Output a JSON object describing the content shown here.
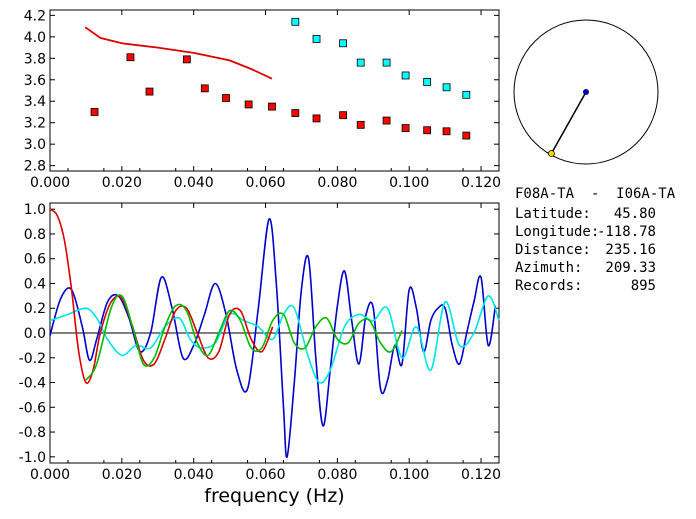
{
  "info": {
    "title": "F08A-TA  -  I06A-TA",
    "rows": [
      {
        "label": "Latitude:",
        "value": "45.80"
      },
      {
        "label": "Longitude:",
        "value": "-118.78"
      },
      {
        "label": "Distance:",
        "value": "235.16"
      },
      {
        "label": "Azimuth:",
        "value": "209.33"
      },
      {
        "label": "Records:",
        "value": "895"
      }
    ]
  },
  "chart_data": [
    {
      "type": "scatter",
      "xlabel": "",
      "ylabel": "",
      "xlim": [
        0.0,
        0.125
      ],
      "ylim": [
        2.75,
        4.25
      ],
      "x_ticks": [
        "0.000",
        "0.020",
        "0.040",
        "0.060",
        "0.080",
        "0.100",
        "0.120"
      ],
      "y_ticks": [
        "2.8",
        "3.0",
        "3.2",
        "3.4",
        "3.6",
        "3.8",
        "4.0",
        "4.2"
      ],
      "series": [
        {
          "color": "#ff0000",
          "marker": "square",
          "x": [
            0.0124,
            0.0224,
            0.0277,
            0.0381,
            0.0431,
            0.049,
            0.0553,
            0.0618,
            0.0683,
            0.0742,
            0.0816,
            0.0865,
            0.0937,
            0.099,
            0.105,
            0.1104,
            0.1159
          ],
          "y": [
            3.3,
            3.81,
            3.49,
            3.79,
            3.52,
            3.43,
            3.37,
            3.35,
            3.29,
            3.24,
            3.27,
            3.18,
            3.22,
            3.15,
            3.13,
            3.12,
            3.08
          ]
        },
        {
          "color": "#00ffff",
          "marker": "square",
          "x": [
            0.0683,
            0.0742,
            0.0816,
            0.0865,
            0.0937,
            0.099,
            0.105,
            0.1104,
            0.1159
          ],
          "y": [
            4.14,
            3.98,
            3.94,
            3.76,
            3.76,
            3.64,
            3.58,
            3.53,
            3.46
          ]
        },
        {
          "color": "#dd0000",
          "marker": "line",
          "x": [
            0.0098,
            0.014,
            0.02,
            0.03,
            0.04,
            0.05,
            0.056,
            0.0618
          ],
          "y": [
            4.09,
            3.99,
            3.94,
            3.9,
            3.85,
            3.78,
            3.7,
            3.61
          ]
        }
      ]
    },
    {
      "type": "line",
      "xlabel": "frequency (Hz)",
      "ylabel": "",
      "xlim": [
        0.0,
        0.125
      ],
      "ylim": [
        -1.05,
        1.05
      ],
      "x_ticks": [
        "0.000",
        "0.020",
        "0.040",
        "0.060",
        "0.080",
        "0.100",
        "0.120"
      ],
      "y_ticks": [
        "-1.0",
        "-0.8",
        "-0.6",
        "-0.4",
        "-0.2",
        "0.0",
        "0.2",
        "0.4",
        "0.6",
        "0.8",
        "1.0"
      ],
      "series": [
        {
          "color": "#0000cc",
          "x": [
            0.0,
            0.003,
            0.006,
            0.009,
            0.011,
            0.013,
            0.016,
            0.019,
            0.022,
            0.025,
            0.028,
            0.031,
            0.034,
            0.037,
            0.04,
            0.043,
            0.046,
            0.049,
            0.052,
            0.055,
            0.058,
            0.061,
            0.063,
            0.065,
            0.066,
            0.068,
            0.07,
            0.072,
            0.074,
            0.076,
            0.078,
            0.08,
            0.082,
            0.084,
            0.086,
            0.088,
            0.09,
            0.092,
            0.094,
            0.096,
            0.098,
            0.1,
            0.102,
            0.104,
            0.106,
            0.108,
            0.11,
            0.112,
            0.114,
            0.116,
            0.118,
            0.12,
            0.122,
            0.124
          ],
          "y": [
            -0.02,
            0.28,
            0.35,
            0.05,
            -0.22,
            -0.05,
            0.25,
            0.3,
            0.12,
            -0.15,
            0.0,
            0.45,
            0.2,
            -0.2,
            -0.1,
            0.15,
            0.4,
            0.15,
            -0.3,
            -0.45,
            0.2,
            0.92,
            0.4,
            -0.6,
            -1.0,
            -0.4,
            0.35,
            0.6,
            -0.2,
            -0.75,
            -0.3,
            0.22,
            0.5,
            0.1,
            -0.25,
            0.15,
            0.2,
            -0.45,
            -0.38,
            -0.1,
            -0.25,
            0.35,
            0.2,
            -0.15,
            0.1,
            0.2,
            0.2,
            -0.1,
            -0.25,
            0.0,
            0.25,
            0.45,
            -0.1,
            0.22
          ]
        },
        {
          "color": "#00e6e6",
          "x": [
            0.0,
            0.005,
            0.01,
            0.013,
            0.016,
            0.02,
            0.024,
            0.028,
            0.032,
            0.036,
            0.039,
            0.042,
            0.046,
            0.05,
            0.054,
            0.058,
            0.062,
            0.065,
            0.068,
            0.072,
            0.075,
            0.078,
            0.082,
            0.086,
            0.09,
            0.094,
            0.098,
            0.102,
            0.106,
            0.11,
            0.114,
            0.118,
            0.122,
            0.125
          ],
          "y": [
            0.1,
            0.15,
            0.2,
            0.12,
            -0.05,
            -0.18,
            -0.1,
            -0.12,
            0.05,
            0.12,
            -0.05,
            -0.12,
            -0.08,
            0.15,
            0.1,
            0.05,
            -0.05,
            0.15,
            0.2,
            -0.2,
            -0.4,
            -0.3,
            0.05,
            0.15,
            0.1,
            0.2,
            -0.2,
            0.05,
            -0.3,
            0.25,
            -0.1,
            0.0,
            0.3,
            0.1
          ]
        },
        {
          "color": "#dd0000",
          "x": [
            0.0,
            0.002,
            0.004,
            0.006,
            0.008,
            0.01,
            0.012,
            0.014,
            0.017,
            0.02,
            0.023,
            0.026,
            0.029,
            0.032,
            0.035,
            0.038,
            0.041,
            0.044,
            0.047,
            0.05,
            0.053,
            0.056,
            0.059,
            0.062
          ],
          "y": [
            1.0,
            0.95,
            0.75,
            0.35,
            -0.15,
            -0.4,
            -0.3,
            0.0,
            0.25,
            0.28,
            0.05,
            -0.22,
            -0.25,
            -0.05,
            0.18,
            0.2,
            0.0,
            -0.2,
            -0.15,
            0.15,
            0.18,
            -0.05,
            -0.15,
            0.05
          ]
        },
        {
          "color": "#00bb00",
          "x": [
            0.01,
            0.013,
            0.017,
            0.02,
            0.023,
            0.026,
            0.029,
            0.032,
            0.035,
            0.038,
            0.041,
            0.044,
            0.047,
            0.05,
            0.053,
            0.056,
            0.059,
            0.062,
            0.065,
            0.068,
            0.071,
            0.074,
            0.077,
            0.08,
            0.083,
            0.086,
            0.089,
            0.092,
            0.095,
            0.098
          ],
          "y": [
            -0.38,
            -0.25,
            0.2,
            0.3,
            0.05,
            -0.25,
            -0.2,
            0.05,
            0.22,
            0.18,
            -0.08,
            -0.18,
            0.0,
            0.18,
            0.1,
            -0.12,
            -0.12,
            0.1,
            0.15,
            -0.08,
            -0.12,
            0.05,
            0.12,
            -0.05,
            -0.08,
            0.08,
            0.1,
            -0.08,
            -0.15,
            0.02
          ]
        }
      ]
    },
    {
      "type": "polar",
      "azimuth_deg": 209.33,
      "distance_fraction": 0.98,
      "center_color": "#0000aa",
      "end_color": "#ffdd00"
    }
  ]
}
